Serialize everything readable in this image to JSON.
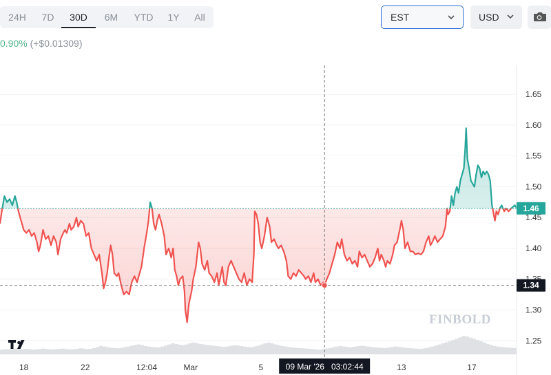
{
  "toolbar": {
    "ranges": [
      {
        "label": "24H",
        "active": false
      },
      {
        "label": "7D",
        "active": false
      },
      {
        "label": "30D",
        "active": true
      },
      {
        "label": "6M",
        "active": false
      },
      {
        "label": "YTD",
        "active": false
      },
      {
        "label": "1Y",
        "active": false
      },
      {
        "label": "All",
        "active": false
      }
    ],
    "timezone": "EST",
    "currency": "USD",
    "camera_icon": "camera-icon"
  },
  "change": {
    "percent": "0.90%",
    "amount": "(+$0.01309)"
  },
  "colors": {
    "up": "#26a69a",
    "down": "#ef5350",
    "accent": "#2d6fd6"
  },
  "chart_data": {
    "type": "area",
    "xlabel": "",
    "ylabel": "",
    "y_ticks": [
      1.25,
      1.3,
      1.35,
      1.4,
      1.45,
      1.5,
      1.55,
      1.6,
      1.65
    ],
    "y_range": [
      1.228,
      1.697
    ],
    "x_ticks": [
      {
        "label": "18",
        "x": 0.0
      },
      {
        "label": "22",
        "x": 4.0
      },
      {
        "label": "12:04",
        "x": 7.5
      },
      {
        "label": "Mar",
        "x": 10.0
      },
      {
        "label": "5",
        "x": 14.0
      },
      {
        "label": "13",
        "x": 22.0
      },
      {
        "label": "17",
        "x": 26.0
      }
    ],
    "x_range": [
      -0.85,
      28.55
    ],
    "baseline": 1.465,
    "last_price_label": "1.46",
    "crosshair": {
      "x": 17.62,
      "y": 1.34,
      "price_label": "1.34",
      "time_label": "09 Mar '26   03:02:44"
    },
    "series": [
      {
        "points": [
          [
            -0.85,
            1.44
          ],
          [
            -0.75,
            1.46
          ],
          [
            -0.6,
            1.485
          ],
          [
            -0.45,
            1.475
          ],
          [
            -0.3,
            1.48
          ],
          [
            -0.15,
            1.47
          ],
          [
            0,
            1.485
          ],
          [
            0.1,
            1.475
          ],
          [
            0.2,
            1.46
          ],
          [
            0.35,
            1.445
          ],
          [
            0.5,
            1.43
          ],
          [
            0.65,
            1.425
          ],
          [
            0.8,
            1.43
          ],
          [
            0.95,
            1.42
          ],
          [
            1.1,
            1.425
          ],
          [
            1.25,
            1.41
          ],
          [
            1.35,
            1.395
          ],
          [
            1.45,
            1.405
          ],
          [
            1.6,
            1.43
          ],
          [
            1.75,
            1.415
          ],
          [
            1.9,
            1.42
          ],
          [
            2.05,
            1.405
          ],
          [
            2.2,
            1.42
          ],
          [
            2.35,
            1.41
          ],
          [
            2.45,
            1.39
          ],
          [
            2.6,
            1.415
          ],
          [
            2.75,
            1.425
          ],
          [
            2.85,
            1.43
          ],
          [
            2.95,
            1.425
          ],
          [
            3.1,
            1.44
          ],
          [
            3.2,
            1.43
          ],
          [
            3.35,
            1.435
          ],
          [
            3.5,
            1.45
          ],
          [
            3.6,
            1.435
          ],
          [
            3.75,
            1.445
          ],
          [
            3.9,
            1.44
          ],
          [
            4.05,
            1.42
          ],
          [
            4.2,
            1.425
          ],
          [
            4.35,
            1.4
          ],
          [
            4.5,
            1.39
          ],
          [
            4.65,
            1.38
          ],
          [
            4.8,
            1.39
          ],
          [
            4.95,
            1.36
          ],
          [
            5.05,
            1.335
          ],
          [
            5.15,
            1.345
          ],
          [
            5.25,
            1.36
          ],
          [
            5.35,
            1.385
          ],
          [
            5.45,
            1.405
          ],
          [
            5.55,
            1.39
          ],
          [
            5.65,
            1.36
          ],
          [
            5.8,
            1.355
          ],
          [
            5.9,
            1.36
          ],
          [
            6.05,
            1.34
          ],
          [
            6.2,
            1.325
          ],
          [
            6.35,
            1.33
          ],
          [
            6.5,
            1.325
          ],
          [
            6.65,
            1.345
          ],
          [
            6.8,
            1.355
          ],
          [
            6.95,
            1.345
          ],
          [
            7.05,
            1.355
          ],
          [
            7.2,
            1.37
          ],
          [
            7.35,
            1.4
          ],
          [
            7.5,
            1.425
          ],
          [
            7.6,
            1.445
          ],
          [
            7.7,
            1.475
          ],
          [
            7.8,
            1.465
          ],
          [
            7.9,
            1.44
          ],
          [
            8.0,
            1.43
          ],
          [
            8.1,
            1.445
          ],
          [
            8.2,
            1.455
          ],
          [
            8.35,
            1.44
          ],
          [
            8.5,
            1.42
          ],
          [
            8.6,
            1.39
          ],
          [
            8.75,
            1.4
          ],
          [
            8.9,
            1.385
          ],
          [
            9.0,
            1.4
          ],
          [
            9.1,
            1.365
          ],
          [
            9.2,
            1.355
          ],
          [
            9.3,
            1.34
          ],
          [
            9.4,
            1.35
          ],
          [
            9.55,
            1.355
          ],
          [
            9.65,
            1.33
          ],
          [
            9.7,
            1.3
          ],
          [
            9.8,
            1.28
          ],
          [
            9.9,
            1.31
          ],
          [
            10.05,
            1.33
          ],
          [
            10.15,
            1.35
          ],
          [
            10.3,
            1.37
          ],
          [
            10.45,
            1.41
          ],
          [
            10.55,
            1.4
          ],
          [
            10.65,
            1.375
          ],
          [
            10.8,
            1.365
          ],
          [
            10.95,
            1.38
          ],
          [
            11.05,
            1.36
          ],
          [
            11.2,
            1.355
          ],
          [
            11.35,
            1.345
          ],
          [
            11.5,
            1.36
          ],
          [
            11.6,
            1.34
          ],
          [
            11.7,
            1.355
          ],
          [
            11.8,
            1.37
          ],
          [
            11.9,
            1.345
          ],
          [
            12.0,
            1.34
          ],
          [
            12.15,
            1.37
          ],
          [
            12.3,
            1.38
          ],
          [
            12.45,
            1.37
          ],
          [
            12.6,
            1.36
          ],
          [
            12.75,
            1.35
          ],
          [
            12.9,
            1.345
          ],
          [
            13.05,
            1.36
          ],
          [
            13.2,
            1.34
          ],
          [
            13.35,
            1.35
          ],
          [
            13.5,
            1.345
          ],
          [
            13.6,
            1.39
          ],
          [
            13.65,
            1.46
          ],
          [
            13.75,
            1.455
          ],
          [
            13.85,
            1.44
          ],
          [
            13.95,
            1.41
          ],
          [
            14.05,
            1.4
          ],
          [
            14.2,
            1.42
          ],
          [
            14.35,
            1.45
          ],
          [
            14.5,
            1.435
          ],
          [
            14.6,
            1.41
          ],
          [
            14.75,
            1.415
          ],
          [
            14.9,
            1.405
          ],
          [
            15.0,
            1.4
          ],
          [
            15.15,
            1.405
          ],
          [
            15.3,
            1.395
          ],
          [
            15.45,
            1.38
          ],
          [
            15.55,
            1.355
          ],
          [
            15.7,
            1.35
          ],
          [
            15.85,
            1.36
          ],
          [
            16.0,
            1.355
          ],
          [
            16.15,
            1.365
          ],
          [
            16.3,
            1.36
          ],
          [
            16.45,
            1.355
          ],
          [
            16.55,
            1.35
          ],
          [
            16.7,
            1.355
          ],
          [
            16.85,
            1.345
          ],
          [
            17.0,
            1.36
          ],
          [
            17.1,
            1.345
          ],
          [
            17.25,
            1.35
          ],
          [
            17.4,
            1.34
          ],
          [
            17.55,
            1.345
          ],
          [
            17.62,
            1.34
          ],
          [
            17.75,
            1.35
          ],
          [
            17.9,
            1.36
          ],
          [
            18.05,
            1.375
          ],
          [
            18.2,
            1.39
          ],
          [
            18.35,
            1.41
          ],
          [
            18.5,
            1.4
          ],
          [
            18.6,
            1.415
          ],
          [
            18.75,
            1.39
          ],
          [
            18.9,
            1.38
          ],
          [
            19.05,
            1.385
          ],
          [
            19.2,
            1.375
          ],
          [
            19.35,
            1.38
          ],
          [
            19.5,
            1.37
          ],
          [
            19.6,
            1.395
          ],
          [
            19.75,
            1.385
          ],
          [
            19.9,
            1.39
          ],
          [
            20.05,
            1.38
          ],
          [
            20.2,
            1.37
          ],
          [
            20.35,
            1.375
          ],
          [
            20.5,
            1.385
          ],
          [
            20.65,
            1.4
          ],
          [
            20.75,
            1.38
          ],
          [
            20.85,
            1.39
          ],
          [
            21.0,
            1.38
          ],
          [
            21.1,
            1.37
          ],
          [
            21.2,
            1.38
          ],
          [
            21.35,
            1.375
          ],
          [
            21.5,
            1.39
          ],
          [
            21.6,
            1.405
          ],
          [
            21.75,
            1.41
          ],
          [
            21.9,
            1.43
          ],
          [
            22.0,
            1.445
          ],
          [
            22.1,
            1.43
          ],
          [
            22.2,
            1.4
          ],
          [
            22.35,
            1.41
          ],
          [
            22.5,
            1.395
          ],
          [
            22.65,
            1.395
          ],
          [
            22.8,
            1.39
          ],
          [
            22.95,
            1.392
          ],
          [
            23.1,
            1.39
          ],
          [
            23.25,
            1.395
          ],
          [
            23.4,
            1.41
          ],
          [
            23.55,
            1.42
          ],
          [
            23.65,
            1.405
          ],
          [
            23.75,
            1.41
          ],
          [
            23.9,
            1.42
          ],
          [
            24.05,
            1.41
          ],
          [
            24.2,
            1.415
          ],
          [
            24.35,
            1.42
          ],
          [
            24.5,
            1.435
          ],
          [
            24.6,
            1.465
          ],
          [
            24.65,
            1.455
          ],
          [
            24.75,
            1.46
          ],
          [
            24.85,
            1.485
          ],
          [
            24.95,
            1.47
          ],
          [
            25.05,
            1.49
          ],
          [
            25.15,
            1.5
          ],
          [
            25.25,
            1.49
          ],
          [
            25.35,
            1.51
          ],
          [
            25.45,
            1.52
          ],
          [
            25.55,
            1.53
          ],
          [
            25.62,
            1.56
          ],
          [
            25.68,
            1.595
          ],
          [
            25.75,
            1.545
          ],
          [
            25.85,
            1.53
          ],
          [
            25.95,
            1.51
          ],
          [
            26.05,
            1.505
          ],
          [
            26.15,
            1.5
          ],
          [
            26.25,
            1.52
          ],
          [
            26.35,
            1.535
          ],
          [
            26.45,
            1.53
          ],
          [
            26.55,
            1.515
          ],
          [
            26.65,
            1.525
          ],
          [
            26.75,
            1.52
          ],
          [
            26.85,
            1.525
          ],
          [
            26.95,
            1.52
          ],
          [
            27.05,
            1.51
          ],
          [
            27.15,
            1.47
          ],
          [
            27.25,
            1.455
          ],
          [
            27.32,
            1.445
          ],
          [
            27.4,
            1.46
          ],
          [
            27.5,
            1.455
          ],
          [
            27.6,
            1.465
          ],
          [
            27.7,
            1.47
          ],
          [
            27.85,
            1.46
          ],
          [
            27.95,
            1.465
          ],
          [
            28.1,
            1.46
          ],
          [
            28.25,
            1.465
          ],
          [
            28.45,
            1.47
          ],
          [
            28.55,
            1.466
          ]
        ]
      }
    ],
    "volume": [
      0.18,
      0.2,
      0.19,
      0.21,
      0.22,
      0.2,
      0.19,
      0.21,
      0.2,
      0.18,
      0.19,
      0.2,
      0.22,
      0.21,
      0.2,
      0.19,
      0.2,
      0.21,
      0.22,
      0.2,
      0.19,
      0.2,
      0.21,
      0.23,
      0.22,
      0.2,
      0.21,
      0.24,
      0.28,
      0.32,
      0.3,
      0.27,
      0.25,
      0.24,
      0.23,
      0.25,
      0.28,
      0.3,
      0.33,
      0.36,
      0.38,
      0.35,
      0.32,
      0.3,
      0.28,
      0.27,
      0.26,
      0.3,
      0.34,
      0.38,
      0.42,
      0.4,
      0.37,
      0.35,
      0.38,
      0.42,
      0.45,
      0.43,
      0.4,
      0.38,
      0.36,
      0.35,
      0.33,
      0.32,
      0.3,
      0.28,
      0.3,
      0.33,
      0.35,
      0.34,
      0.32,
      0.3,
      0.28,
      0.27,
      0.3,
      0.33,
      0.38,
      0.42,
      0.45,
      0.42,
      0.38,
      0.35,
      0.32,
      0.3,
      0.28,
      0.26,
      0.25,
      0.24,
      0.23,
      0.22,
      0.21,
      0.2,
      0.19,
      0.18,
      0.2,
      0.22,
      0.24,
      0.27,
      0.3,
      0.32,
      0.3,
      0.28,
      0.27,
      0.29,
      0.31,
      0.33,
      0.32,
      0.3,
      0.28,
      0.27,
      0.26,
      0.25,
      0.24,
      0.26,
      0.28,
      0.3,
      0.29,
      0.27,
      0.25,
      0.24,
      0.23,
      0.22,
      0.21,
      0.22,
      0.24,
      0.27,
      0.3,
      0.34,
      0.38,
      0.42,
      0.46,
      0.5,
      0.55,
      0.6,
      0.65,
      0.7,
      0.68,
      0.64,
      0.6,
      0.55,
      0.5,
      0.45,
      0.4,
      0.36,
      0.32,
      0.3,
      0.28,
      0.27,
      0.26,
      0.25,
      0.24
    ]
  }
}
